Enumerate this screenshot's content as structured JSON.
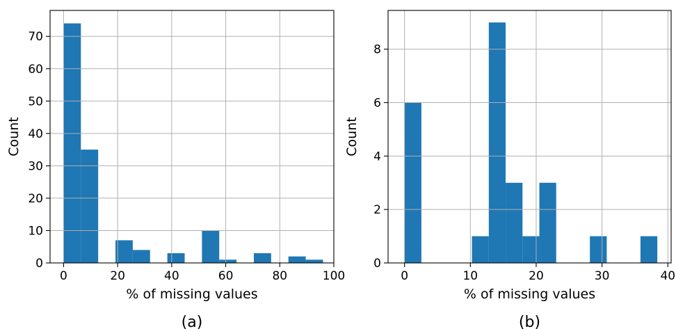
{
  "chart_data": [
    {
      "type": "bar",
      "panel_label": "(a)",
      "xlabel": "% of missing values",
      "ylabel": "Count",
      "xlim": [
        -5,
        100
      ],
      "ylim": [
        0,
        78
      ],
      "xticks": [
        0,
        20,
        40,
        60,
        80,
        100
      ],
      "yticks": [
        0,
        10,
        20,
        30,
        40,
        50,
        60,
        70
      ],
      "grid": true,
      "color": "#1f77b4",
      "bins": [
        {
          "x0": 0.0,
          "x1": 6.4,
          "value": 74
        },
        {
          "x0": 6.4,
          "x1": 12.8,
          "value": 35
        },
        {
          "x0": 19.2,
          "x1": 25.6,
          "value": 7
        },
        {
          "x0": 25.6,
          "x1": 32.0,
          "value": 4
        },
        {
          "x0": 38.4,
          "x1": 44.8,
          "value": 3
        },
        {
          "x0": 51.2,
          "x1": 57.6,
          "value": 10
        },
        {
          "x0": 57.6,
          "x1": 64.0,
          "value": 1
        },
        {
          "x0": 70.4,
          "x1": 76.8,
          "value": 3
        },
        {
          "x0": 83.2,
          "x1": 89.6,
          "value": 2
        },
        {
          "x0": 89.6,
          "x1": 96.0,
          "value": 1
        }
      ]
    },
    {
      "type": "bar",
      "panel_label": "(b)",
      "xlabel": "% of missing values",
      "ylabel": "Count",
      "xlim": [
        -2.5,
        40.5
      ],
      "ylim": [
        0,
        9.45
      ],
      "xticks": [
        0,
        10,
        20,
        30,
        40
      ],
      "yticks": [
        0,
        2,
        4,
        6,
        8
      ],
      "grid": true,
      "color": "#1f77b4",
      "bins": [
        {
          "x0": 0.0,
          "x1": 2.56,
          "value": 6
        },
        {
          "x0": 10.24,
          "x1": 12.8,
          "value": 1
        },
        {
          "x0": 12.8,
          "x1": 15.36,
          "value": 9
        },
        {
          "x0": 15.36,
          "x1": 17.92,
          "value": 3
        },
        {
          "x0": 17.92,
          "x1": 20.48,
          "value": 1
        },
        {
          "x0": 20.48,
          "x1": 23.04,
          "value": 3
        },
        {
          "x0": 28.16,
          "x1": 30.72,
          "value": 1
        },
        {
          "x0": 35.84,
          "x1": 38.4,
          "value": 1
        }
      ]
    }
  ]
}
